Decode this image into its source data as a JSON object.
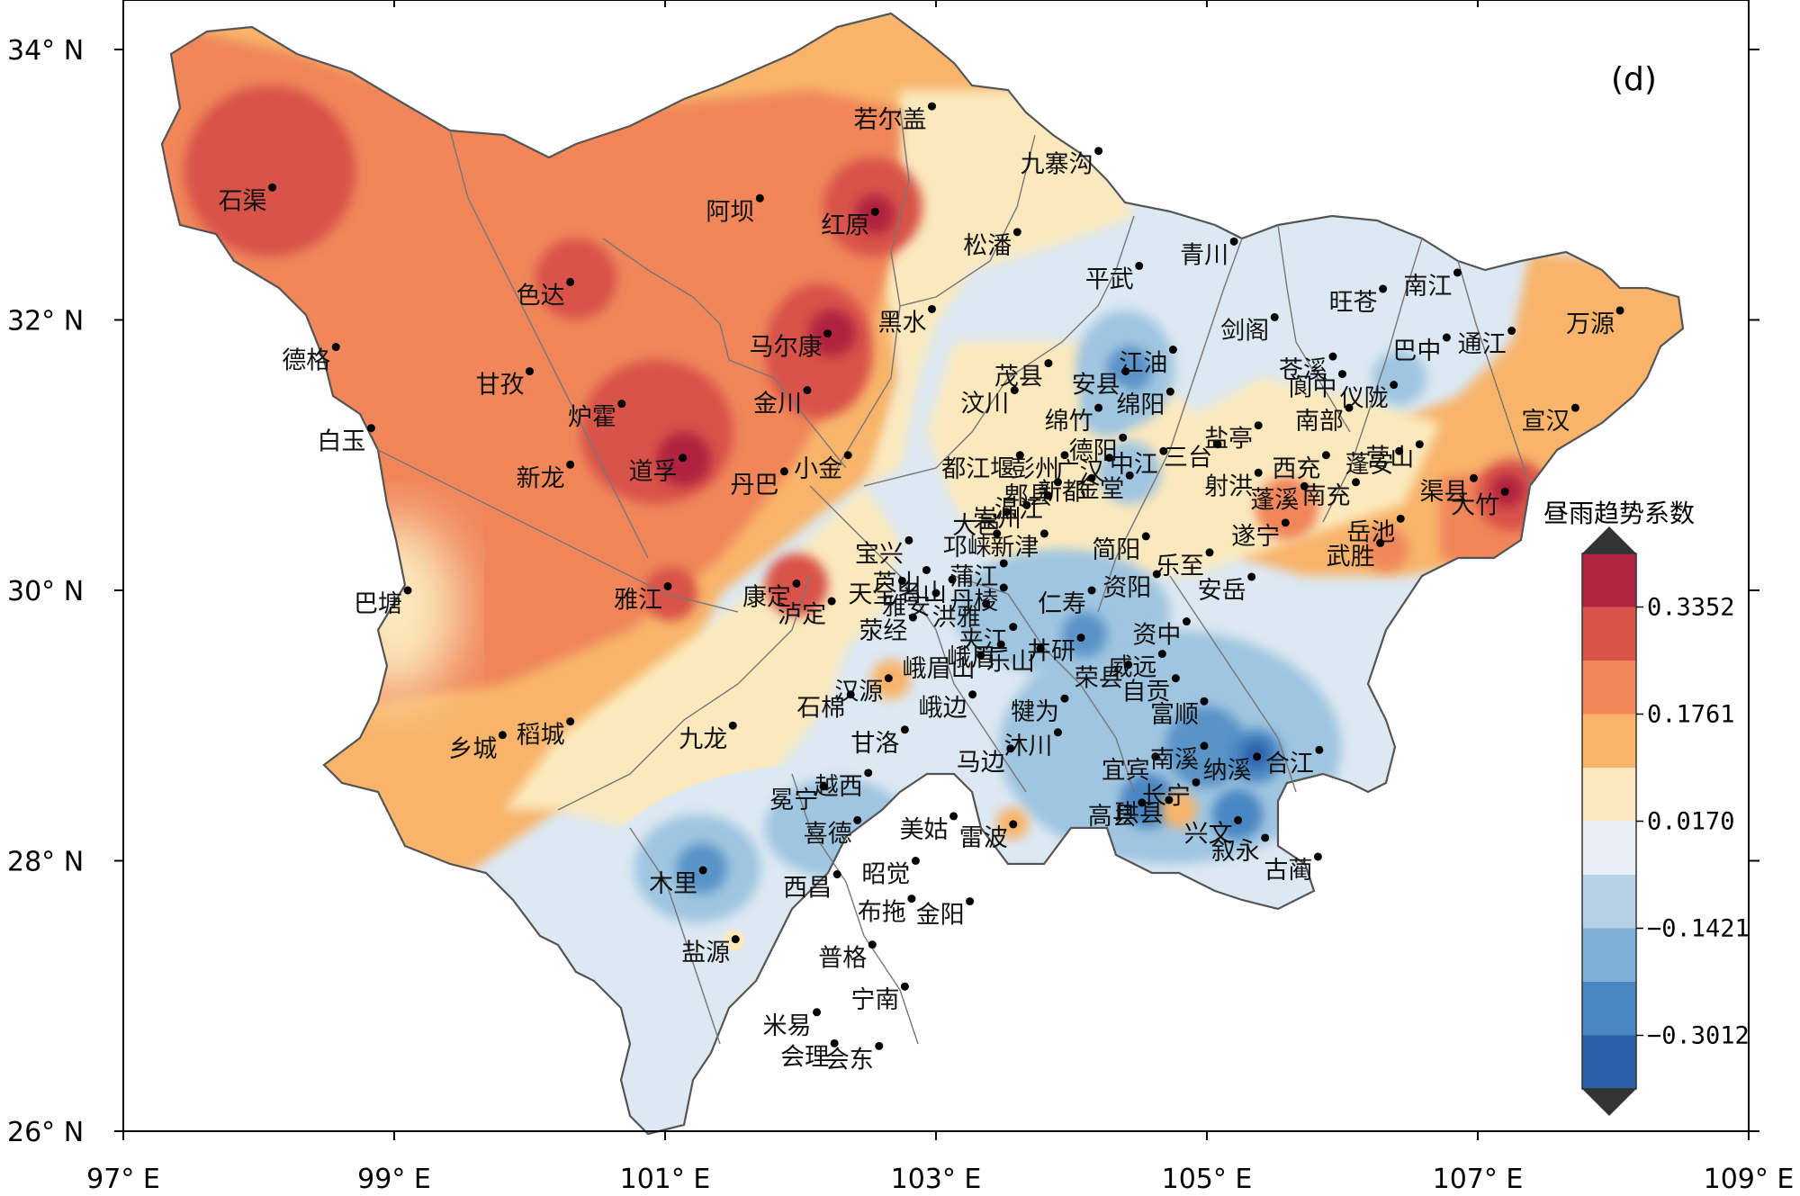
{
  "map": {
    "panel_label": "(d)",
    "lat_ticks": [
      {
        "value": 34,
        "label": "34° N"
      },
      {
        "value": 32,
        "label": "32° N"
      },
      {
        "value": 30,
        "label": "30° N"
      },
      {
        "value": 28,
        "label": "28° N"
      },
      {
        "value": 26,
        "label": "26° N"
      }
    ],
    "lon_ticks": [
      {
        "value": 97,
        "label": "97° E"
      },
      {
        "value": 99,
        "label": "99° E"
      },
      {
        "value": 101,
        "label": "101° E"
      },
      {
        "value": 103,
        "label": "103° E"
      },
      {
        "value": 105,
        "label": "105° E"
      },
      {
        "value": 107,
        "label": "107° E"
      },
      {
        "value": 109,
        "label": "109° E"
      }
    ],
    "colors": {
      "neg_deep": "#2b5faa",
      "neg_mid": "#5a93c8",
      "neg_light": "#9fc5e0",
      "neg_pale": "#dce8f2",
      "near_zero": "#fbe9bd",
      "pos_light": "#f8b46b",
      "pos_mid": "#f0865a",
      "pos_high": "#d8534a",
      "pos_deep": "#b1243f"
    },
    "colorbar": {
      "title": "昼雨趋势系数",
      "tick_labels": [
        "0.3352",
        "0.1761",
        "0.0170",
        "−0.1421",
        "−0.3012"
      ],
      "swatches": [
        "#b1243f",
        "#d8534a",
        "#f0865a",
        "#f8b46b",
        "#fbe9bd",
        "#e8eff6",
        "#b6d0e6",
        "#7fb0d6",
        "#4a86c2",
        "#2b5faa"
      ]
    },
    "stations": [
      {
        "name": "石渠",
        "lon": 98.1,
        "lat": 32.98
      },
      {
        "name": "若尔盖",
        "lon": 102.97,
        "lat": 33.58
      },
      {
        "name": "阿坝",
        "lon": 101.7,
        "lat": 32.9
      },
      {
        "name": "红原",
        "lon": 102.55,
        "lat": 32.8
      },
      {
        "name": "九寨沟",
        "lon": 104.2,
        "lat": 33.25
      },
      {
        "name": "松潘",
        "lon": 103.6,
        "lat": 32.65
      },
      {
        "name": "色达",
        "lon": 100.3,
        "lat": 32.28
      },
      {
        "name": "青川",
        "lon": 105.2,
        "lat": 32.58
      },
      {
        "name": "平武",
        "lon": 104.5,
        "lat": 32.4
      },
      {
        "name": "旺苍",
        "lon": 106.3,
        "lat": 32.23
      },
      {
        "name": "南江",
        "lon": 106.85,
        "lat": 32.35
      },
      {
        "name": "剑阁",
        "lon": 105.5,
        "lat": 32.02
      },
      {
        "name": "黑水",
        "lon": 102.97,
        "lat": 32.08
      },
      {
        "name": "万源",
        "lon": 108.05,
        "lat": 32.07
      },
      {
        "name": "马尔康",
        "lon": 102.2,
        "lat": 31.9
      },
      {
        "name": "茂县",
        "lon": 103.83,
        "lat": 31.68
      },
      {
        "name": "安县",
        "lon": 104.4,
        "lat": 31.62
      },
      {
        "name": "江油",
        "lon": 104.75,
        "lat": 31.78
      },
      {
        "name": "巴中",
        "lon": 106.77,
        "lat": 31.87
      },
      {
        "name": "通江",
        "lon": 107.25,
        "lat": 31.92
      },
      {
        "name": "苍溪",
        "lon": 105.93,
        "lat": 31.73
      },
      {
        "name": "阆中",
        "lon": 106.0,
        "lat": 31.6
      },
      {
        "name": "德格",
        "lon": 98.57,
        "lat": 31.8
      },
      {
        "name": "甘孜",
        "lon": 100.0,
        "lat": 31.62
      },
      {
        "name": "汶川",
        "lon": 103.58,
        "lat": 31.48
      },
      {
        "name": "绵竹",
        "lon": 104.2,
        "lat": 31.35
      },
      {
        "name": "绵阳",
        "lon": 104.73,
        "lat": 31.47
      },
      {
        "name": "仪陇",
        "lon": 106.38,
        "lat": 31.52
      },
      {
        "name": "德阳",
        "lon": 104.38,
        "lat": 31.13
      },
      {
        "name": "盐亭",
        "lon": 105.38,
        "lat": 31.22
      },
      {
        "name": "金川",
        "lon": 102.05,
        "lat": 31.48
      },
      {
        "name": "炉霍",
        "lon": 100.68,
        "lat": 31.38
      },
      {
        "name": "宣汉",
        "lon": 107.72,
        "lat": 31.35
      },
      {
        "name": "白玉",
        "lon": 98.83,
        "lat": 31.2
      },
      {
        "name": "彭州",
        "lon": 103.95,
        "lat": 31.0
      },
      {
        "name": "广汉",
        "lon": 104.28,
        "lat": 30.98
      },
      {
        "name": "中江",
        "lon": 104.68,
        "lat": 31.03
      },
      {
        "name": "三台",
        "lon": 105.08,
        "lat": 31.08
      },
      {
        "name": "南部",
        "lon": 106.05,
        "lat": 31.35
      },
      {
        "name": "营山",
        "lon": 106.57,
        "lat": 31.08
      },
      {
        "name": "都江堰",
        "lon": 103.62,
        "lat": 31.0
      },
      {
        "name": "小金",
        "lon": 102.35,
        "lat": 31.0
      },
      {
        "name": "西充",
        "lon": 105.88,
        "lat": 31.0
      },
      {
        "name": "南充",
        "lon": 106.1,
        "lat": 30.8
      },
      {
        "name": "渠县",
        "lon": 106.97,
        "lat": 30.83
      },
      {
        "name": "道孚",
        "lon": 101.13,
        "lat": 30.98
      },
      {
        "name": "新龙",
        "lon": 100.3,
        "lat": 30.93
      },
      {
        "name": "崇州",
        "lon": 103.67,
        "lat": 30.63
      },
      {
        "name": "郫县",
        "lon": 103.9,
        "lat": 30.8
      },
      {
        "name": "新都",
        "lon": 104.15,
        "lat": 30.83
      },
      {
        "name": "金堂",
        "lon": 104.43,
        "lat": 30.85
      },
      {
        "name": "射洪",
        "lon": 105.38,
        "lat": 30.87
      },
      {
        "name": "蓬溪",
        "lon": 105.72,
        "lat": 30.77
      },
      {
        "name": "蓬安",
        "lon": 106.42,
        "lat": 31.03
      },
      {
        "name": "丹巴",
        "lon": 101.88,
        "lat": 30.88
      },
      {
        "name": "宝兴",
        "lon": 102.8,
        "lat": 30.37
      },
      {
        "name": "大竹",
        "lon": 107.2,
        "lat": 30.73
      },
      {
        "name": "大邑",
        "lon": 103.52,
        "lat": 30.58
      },
      {
        "name": "温江",
        "lon": 103.83,
        "lat": 30.7
      },
      {
        "name": "芦山",
        "lon": 102.93,
        "lat": 30.15
      },
      {
        "name": "新津",
        "lon": 103.8,
        "lat": 30.42
      },
      {
        "name": "乐至",
        "lon": 105.02,
        "lat": 30.28
      },
      {
        "name": "遂宁",
        "lon": 105.58,
        "lat": 30.5
      },
      {
        "name": "岳池",
        "lon": 106.43,
        "lat": 30.53
      },
      {
        "name": "武胜",
        "lon": 106.28,
        "lat": 30.35
      },
      {
        "name": "名山",
        "lon": 103.12,
        "lat": 30.08
      },
      {
        "name": "邛崃",
        "lon": 103.45,
        "lat": 30.42
      },
      {
        "name": "简阳",
        "lon": 104.55,
        "lat": 30.4
      },
      {
        "name": "资阳",
        "lon": 104.63,
        "lat": 30.12
      },
      {
        "name": "雅安",
        "lon": 103.0,
        "lat": 29.98
      },
      {
        "name": "丹棱",
        "lon": 103.5,
        "lat": 30.02
      },
      {
        "name": "洪雅",
        "lon": 103.37,
        "lat": 29.9
      },
      {
        "name": "巴塘",
        "lon": 99.1,
        "lat": 30.0
      },
      {
        "name": "雅江",
        "lon": 101.02,
        "lat": 30.03
      },
      {
        "name": "康定",
        "lon": 101.97,
        "lat": 30.05
      },
      {
        "name": "天全",
        "lon": 102.75,
        "lat": 30.07
      },
      {
        "name": "泸定",
        "lon": 102.23,
        "lat": 29.92
      },
      {
        "name": "蒲江",
        "lon": 103.5,
        "lat": 30.2
      },
      {
        "name": "仁寿",
        "lon": 104.15,
        "lat": 30.0
      },
      {
        "name": "资中",
        "lon": 104.85,
        "lat": 29.77
      },
      {
        "name": "安岳",
        "lon": 105.33,
        "lat": 30.1
      },
      {
        "name": "荥经",
        "lon": 102.83,
        "lat": 29.8
      },
      {
        "name": "峨眉",
        "lon": 103.48,
        "lat": 29.6
      },
      {
        "name": "夹江",
        "lon": 103.57,
        "lat": 29.73
      },
      {
        "name": "井研",
        "lon": 104.07,
        "lat": 29.65
      },
      {
        "name": "威远",
        "lon": 104.67,
        "lat": 29.53
      },
      {
        "name": "荣县",
        "lon": 104.42,
        "lat": 29.45
      },
      {
        "name": "汉源",
        "lon": 102.65,
        "lat": 29.35
      },
      {
        "name": "峨眉山",
        "lon": 103.33,
        "lat": 29.52
      },
      {
        "name": "自贡",
        "lon": 104.77,
        "lat": 29.35
      },
      {
        "name": "犍为",
        "lon": 103.95,
        "lat": 29.2
      },
      {
        "name": "富顺",
        "lon": 104.98,
        "lat": 29.18
      },
      {
        "name": "石棉",
        "lon": 102.37,
        "lat": 29.23
      },
      {
        "name": "九龙",
        "lon": 101.5,
        "lat": 29.0
      },
      {
        "name": "乐山",
        "lon": 103.77,
        "lat": 29.57
      },
      {
        "name": "宜宾",
        "lon": 104.62,
        "lat": 28.77
      },
      {
        "name": "南溪",
        "lon": 104.98,
        "lat": 28.85
      },
      {
        "name": "合江",
        "lon": 105.83,
        "lat": 28.82
      },
      {
        "name": "甘洛",
        "lon": 102.77,
        "lat": 28.97
      },
      {
        "name": "峨边",
        "lon": 103.27,
        "lat": 29.23
      },
      {
        "name": "沐川",
        "lon": 103.9,
        "lat": 28.95
      },
      {
        "name": "纳溪",
        "lon": 105.37,
        "lat": 28.77
      },
      {
        "name": "越西",
        "lon": 102.5,
        "lat": 28.65
      },
      {
        "name": "马边",
        "lon": 103.55,
        "lat": 28.83
      },
      {
        "name": "冕宁",
        "lon": 102.17,
        "lat": 28.55
      },
      {
        "name": "乡城",
        "lon": 99.8,
        "lat": 28.93
      },
      {
        "name": "稻城",
        "lon": 100.3,
        "lat": 29.03
      },
      {
        "name": "高县",
        "lon": 104.52,
        "lat": 28.43
      },
      {
        "name": "长宁",
        "lon": 104.92,
        "lat": 28.58
      },
      {
        "name": "兴文",
        "lon": 105.23,
        "lat": 28.3
      },
      {
        "name": "美姑",
        "lon": 103.13,
        "lat": 28.33
      },
      {
        "name": "喜德",
        "lon": 102.42,
        "lat": 28.3
      },
      {
        "name": "雷波",
        "lon": 103.57,
        "lat": 28.27
      },
      {
        "name": "珙县",
        "lon": 104.72,
        "lat": 28.45
      },
      {
        "name": "叙永",
        "lon": 105.43,
        "lat": 28.17
      },
      {
        "name": "古蔺",
        "lon": 105.82,
        "lat": 28.03
      },
      {
        "name": "木里",
        "lon": 101.28,
        "lat": 27.93
      },
      {
        "name": "西昌",
        "lon": 102.27,
        "lat": 27.9
      },
      {
        "name": "昭觉",
        "lon": 102.85,
        "lat": 28.0
      },
      {
        "name": "布拖",
        "lon": 102.82,
        "lat": 27.72
      },
      {
        "name": "金阳",
        "lon": 103.25,
        "lat": 27.7
      },
      {
        "name": "盐源",
        "lon": 101.52,
        "lat": 27.42
      },
      {
        "name": "普格",
        "lon": 102.53,
        "lat": 27.38
      },
      {
        "name": "宁南",
        "lon": 102.77,
        "lat": 27.07
      },
      {
        "name": "米易",
        "lon": 102.12,
        "lat": 26.88
      },
      {
        "name": "会理",
        "lon": 102.25,
        "lat": 26.65
      },
      {
        "name": "会东",
        "lon": 102.58,
        "lat": 26.63
      }
    ],
    "station_offsets_px": null
  }
}
